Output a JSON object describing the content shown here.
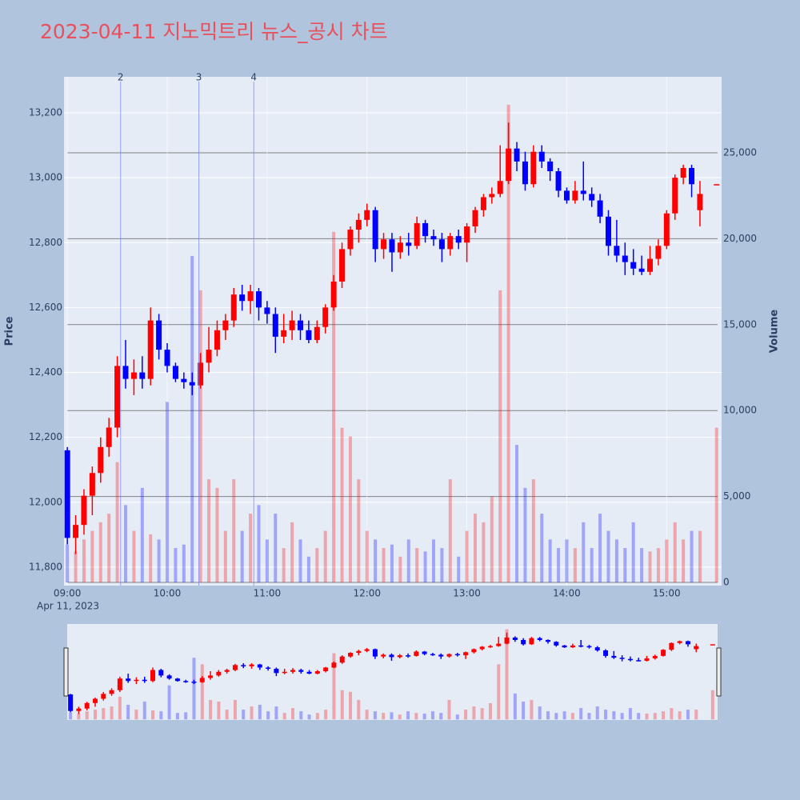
{
  "chart_data": {
    "type": "candlestick",
    "title": "2023-04-11 지노믹트리 뉴스_공시 차트",
    "y_label": "Price",
    "y2_label": "Volume",
    "x_date_label": "Apr 11, 2023",
    "increasing_color": "#ff0000",
    "decreasing_color": "#0000ff",
    "grid": true,
    "range_slider": true,
    "xlim": [
      "2023-04-11 08:58",
      "2023-04-11 15:33"
    ],
    "xticks": [
      {
        "value": "2023-04-11 09:00",
        "label": "09:00"
      },
      {
        "value": "2023-04-11 10:00",
        "label": "10:00"
      },
      {
        "value": "2023-04-11 11:00",
        "label": "11:00"
      },
      {
        "value": "2023-04-11 12:00",
        "label": "12:00"
      },
      {
        "value": "2023-04-11 13:00",
        "label": "13:00"
      },
      {
        "value": "2023-04-11 14:00",
        "label": "14:00"
      },
      {
        "value": "2023-04-11 15:00",
        "label": "15:00"
      }
    ],
    "ylim": [
      11743,
      13311
    ],
    "yticks": [
      {
        "value": 11800,
        "label": "11,800"
      },
      {
        "value": 12000,
        "label": "12,000"
      },
      {
        "value": 12200,
        "label": "12,200"
      },
      {
        "value": 12400,
        "label": "12,400"
      },
      {
        "value": 12600,
        "label": "12,600"
      },
      {
        "value": 12800,
        "label": "12,800"
      },
      {
        "value": 13000,
        "label": "13,000"
      },
      {
        "value": 13200,
        "label": "13,200"
      }
    ],
    "y2lim": [
      -186,
      29423
    ],
    "y2ticks": [
      0,
      {
        "value": 5000,
        "label": "5,000"
      },
      {
        "value": 10000,
        "label": "10,000"
      },
      {
        "value": 15000,
        "label": "15,000"
      },
      {
        "value": 20000,
        "label": "20,000"
      },
      {
        "value": 25000,
        "label": "25,000"
      }
    ],
    "news_lines": [
      {
        "x": "2023-04-11 09:32",
        "label": "2"
      },
      {
        "x": "2023-04-11 10:19",
        "label": "3"
      },
      {
        "x": "2023-04-11 10:52",
        "label": "4"
      }
    ],
    "x": [
      "2023-04-11 09:00",
      "2023-04-11 09:05",
      "2023-04-11 09:10",
      "2023-04-11 09:15",
      "2023-04-11 09:20",
      "2023-04-11 09:25",
      "2023-04-11 09:30",
      "2023-04-11 09:35",
      "2023-04-11 09:40",
      "2023-04-11 09:45",
      "2023-04-11 09:50",
      "2023-04-11 09:55",
      "2023-04-11 10:00",
      "2023-04-11 10:05",
      "2023-04-11 10:10",
      "2023-04-11 10:15",
      "2023-04-11 10:20",
      "2023-04-11 10:25",
      "2023-04-11 10:30",
      "2023-04-11 10:35",
      "2023-04-11 10:40",
      "2023-04-11 10:45",
      "2023-04-11 10:50",
      "2023-04-11 10:55",
      "2023-04-11 11:00",
      "2023-04-11 11:05",
      "2023-04-11 11:10",
      "2023-04-11 11:15",
      "2023-04-11 11:20",
      "2023-04-11 11:25",
      "2023-04-11 11:30",
      "2023-04-11 11:35",
      "2023-04-11 11:40",
      "2023-04-11 11:45",
      "2023-04-11 11:50",
      "2023-04-11 11:55",
      "2023-04-11 12:00",
      "2023-04-11 12:05",
      "2023-04-11 12:10",
      "2023-04-11 12:15",
      "2023-04-11 12:20",
      "2023-04-11 12:25",
      "2023-04-11 12:30",
      "2023-04-11 12:35",
      "2023-04-11 12:40",
      "2023-04-11 12:45",
      "2023-04-11 12:50",
      "2023-04-11 12:55",
      "2023-04-11 13:00",
      "2023-04-11 13:05",
      "2023-04-11 13:10",
      "2023-04-11 13:15",
      "2023-04-11 13:20",
      "2023-04-11 13:25",
      "2023-04-11 13:30",
      "2023-04-11 13:35",
      "2023-04-11 13:40",
      "2023-04-11 13:45",
      "2023-04-11 13:50",
      "2023-04-11 13:55",
      "2023-04-11 14:00",
      "2023-04-11 14:05",
      "2023-04-11 14:10",
      "2023-04-11 14:15",
      "2023-04-11 14:20",
      "2023-04-11 14:25",
      "2023-04-11 14:30",
      "2023-04-11 14:35",
      "2023-04-11 14:40",
      "2023-04-11 14:45",
      "2023-04-11 14:50",
      "2023-04-11 14:55",
      "2023-04-11 15:00",
      "2023-04-11 15:05",
      "2023-04-11 15:10",
      "2023-04-11 15:15",
      "2023-04-11 15:20",
      "2023-04-11 15:30"
    ],
    "open": [
      12160,
      11890,
      11930,
      12020,
      12090,
      12170,
      12230,
      12420,
      12380,
      12400,
      12380,
      12560,
      12470,
      12420,
      12380,
      12370,
      12360,
      12430,
      12470,
      12530,
      12560,
      12640,
      12620,
      12650,
      12600,
      12580,
      12510,
      12530,
      12560,
      12530,
      12500,
      12540,
      12600,
      12680,
      12780,
      12840,
      12870,
      12900,
      12780,
      12810,
      12770,
      12800,
      12790,
      12860,
      12820,
      12810,
      12780,
      12820,
      12800,
      12850,
      12900,
      12940,
      12950,
      12990,
      13090,
      13050,
      12980,
      13080,
      13050,
      13020,
      12960,
      12930,
      12960,
      12950,
      12930,
      12880,
      12790,
      12760,
      12740,
      12720,
      12710,
      12750,
      12790,
      12890,
      13000,
      13030,
      12900,
      12980
    ],
    "high": [
      12170,
      11960,
      12040,
      12110,
      12200,
      12260,
      12450,
      12500,
      12440,
      12450,
      12600,
      12580,
      12490,
      12430,
      12400,
      12400,
      12460,
      12540,
      12560,
      12580,
      12660,
      12670,
      12670,
      12660,
      12620,
      12600,
      12580,
      12590,
      12580,
      12560,
      12560,
      12610,
      12700,
      12800,
      12850,
      12890,
      12920,
      12910,
      12830,
      12830,
      12820,
      12830,
      12880,
      12870,
      12840,
      12830,
      12830,
      12840,
      12860,
      12910,
      12950,
      12970,
      13100,
      13170,
      13110,
      13080,
      13100,
      13100,
      13060,
      13030,
      12970,
      12990,
      13050,
      12970,
      12950,
      12900,
      12870,
      12800,
      12780,
      12760,
      12790,
      12810,
      12900,
      13010,
      13040,
      13040,
      12990,
      12980
    ],
    "low": [
      11870,
      11840,
      11900,
      11960,
      12060,
      12140,
      12200,
      12350,
      12330,
      12350,
      12360,
      12440,
      12400,
      12370,
      12350,
      12330,
      12350,
      12400,
      12450,
      12500,
      12540,
      12590,
      12580,
      12560,
      12550,
      12460,
      12490,
      12500,
      12500,
      12490,
      12490,
      12520,
      12590,
      12660,
      12760,
      12800,
      12850,
      12740,
      12750,
      12710,
      12750,
      12760,
      12780,
      12800,
      12790,
      12740,
      12760,
      12780,
      12740,
      12830,
      12880,
      12920,
      12940,
      12980,
      13020,
      12960,
      12970,
      13030,
      12990,
      12940,
      12920,
      12920,
      12930,
      12910,
      12860,
      12760,
      12740,
      12700,
      12700,
      12700,
      12700,
      12730,
      12780,
      12870,
      12980,
      12940,
      12850,
      12980
    ],
    "close": [
      11890,
      11930,
      12020,
      12090,
      12170,
      12230,
      12420,
      12380,
      12400,
      12380,
      12560,
      12470,
      12420,
      12380,
      12370,
      12360,
      12430,
      12470,
      12530,
      12560,
      12640,
      12620,
      12650,
      12600,
      12580,
      12510,
      12530,
      12560,
      12530,
      12500,
      12540,
      12600,
      12680,
      12780,
      12840,
      12870,
      12900,
      12780,
      12810,
      12770,
      12800,
      12790,
      12860,
      12820,
      12810,
      12780,
      12820,
      12800,
      12850,
      12900,
      12940,
      12950,
      12990,
      13090,
      13050,
      12980,
      13080,
      13050,
      13020,
      12960,
      12930,
      12960,
      12950,
      12930,
      12880,
      12790,
      12760,
      12740,
      12720,
      12710,
      12750,
      12790,
      12890,
      13000,
      13030,
      12980,
      12950,
      12980
    ],
    "volume": [
      2200,
      1800,
      2500,
      3000,
      3500,
      4000,
      7000,
      4500,
      3000,
      5500,
      2800,
      2500,
      10500,
      2000,
      2200,
      19000,
      17000,
      6000,
      5500,
      3000,
      6000,
      3000,
      4000,
      4500,
      2500,
      4000,
      2000,
      3500,
      2500,
      1500,
      2000,
      3000,
      20400,
      9000,
      8500,
      6000,
      3000,
      2500,
      2000,
      2200,
      1500,
      2500,
      2000,
      1800,
      2500,
      2000,
      6000,
      1500,
      3000,
      4000,
      3500,
      5000,
      17000,
      27800,
      8000,
      5500,
      6000,
      4000,
      2500,
      2000,
      2500,
      2000,
      3500,
      2000,
      4000,
      3000,
      2500,
      2000,
      3500,
      2000,
      1800,
      2000,
      2500,
      3500,
      2500,
      3000,
      3000,
      9000
    ]
  }
}
